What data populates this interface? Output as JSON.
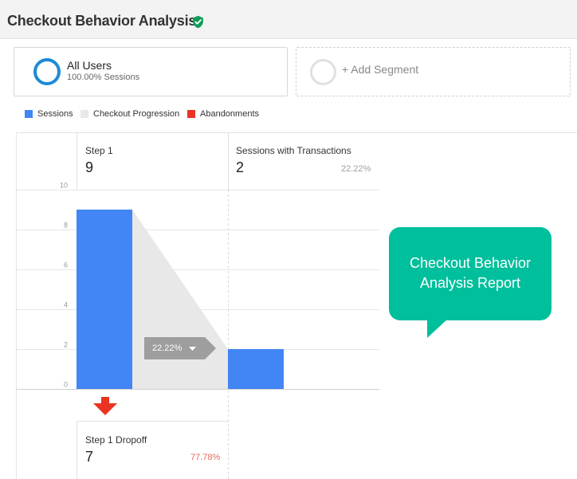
{
  "header": {
    "title": "Checkout Behavior Analysis",
    "verified_icon": "verified-shield-check-icon",
    "verified_color": "#0f9d58"
  },
  "segments": {
    "active": {
      "name": "All Users",
      "detail": "100.00% Sessions",
      "ring_color": "#1c8ad7"
    },
    "add_label": "+ Add Segment"
  },
  "legend": [
    {
      "label": "Sessions",
      "color": "#4285f4"
    },
    {
      "label": "Checkout Progression",
      "color": "#e8e8e8"
    },
    {
      "label": "Abandonments",
      "color": "#ea3323"
    }
  ],
  "chart_data": {
    "type": "bar",
    "categories": [
      "Step 1",
      "Sessions with Transactions"
    ],
    "values": [
      9,
      2
    ],
    "ylim": [
      0,
      10
    ],
    "yticks": [
      "0",
      "2",
      "4",
      "6",
      "8",
      "10"
    ],
    "grid": true,
    "bar_color": "#4285f4",
    "steps": [
      {
        "label": "Step 1",
        "value": "9",
        "percent": ""
      },
      {
        "label": "Sessions with Transactions",
        "value": "2",
        "percent": "22.22%"
      }
    ],
    "progression": {
      "percent": "22.22%"
    },
    "dropoff": {
      "label": "Step 1 Dropoff",
      "value": "7",
      "percent": "77.78%",
      "color": "#ea3323"
    }
  },
  "callout": {
    "text_line1": "Checkout Behavior",
    "text_line2": "Analysis Report",
    "color": "#00bf9c"
  }
}
